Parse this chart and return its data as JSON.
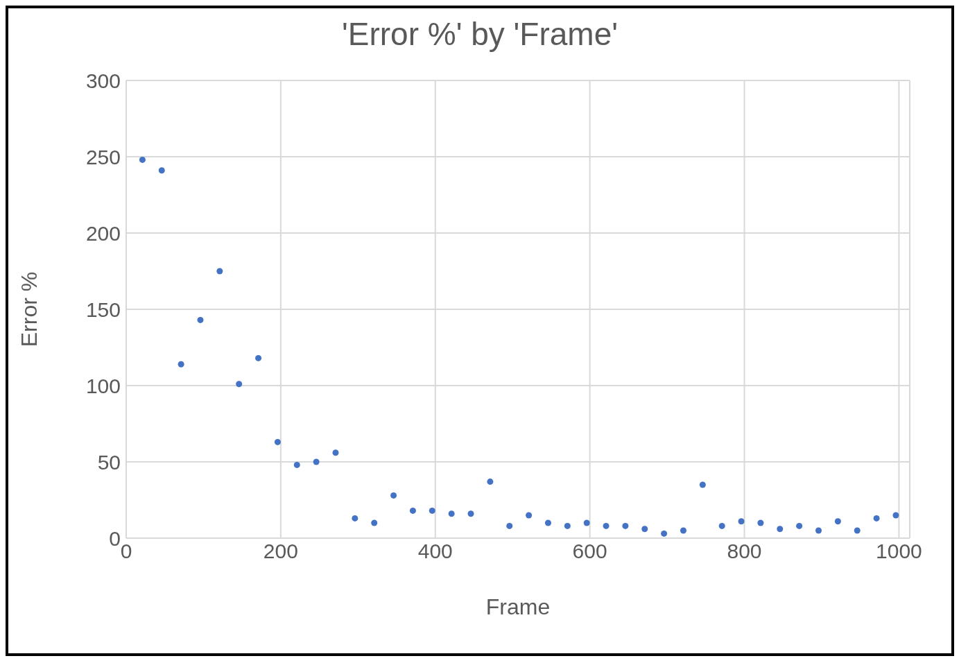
{
  "chart_data": {
    "type": "scatter",
    "title": "'Error %' by 'Frame'",
    "xlabel": "Frame",
    "ylabel": "Error %",
    "x": [
      21,
      46,
      71,
      96,
      121,
      146,
      171,
      196,
      221,
      246,
      271,
      296,
      321,
      346,
      371,
      396,
      421,
      446,
      471,
      496,
      521,
      546,
      571,
      596,
      621,
      646,
      671,
      696,
      721,
      746,
      771,
      796,
      821,
      846,
      871,
      896,
      921,
      946,
      971,
      996
    ],
    "series": [
      {
        "color": "#4472c4",
        "values": [
          248,
          241,
          114,
          143,
          175,
          101,
          118,
          63,
          48,
          50,
          56,
          13,
          10,
          28,
          18,
          18,
          16,
          16,
          37,
          8,
          15,
          10,
          8,
          10,
          8,
          8,
          6,
          3,
          5,
          35,
          8,
          11,
          10,
          6,
          8,
          5,
          11,
          5,
          13,
          15
        ]
      }
    ],
    "xlim": [
      0,
      1014
    ],
    "xticks": [
      0,
      200,
      400,
      600,
      800,
      1000
    ],
    "ylim": [
      0,
      300
    ],
    "yticks": [
      0,
      50,
      100,
      150,
      200,
      250,
      300
    ],
    "grid": true,
    "marker": "circle",
    "legend": false
  }
}
